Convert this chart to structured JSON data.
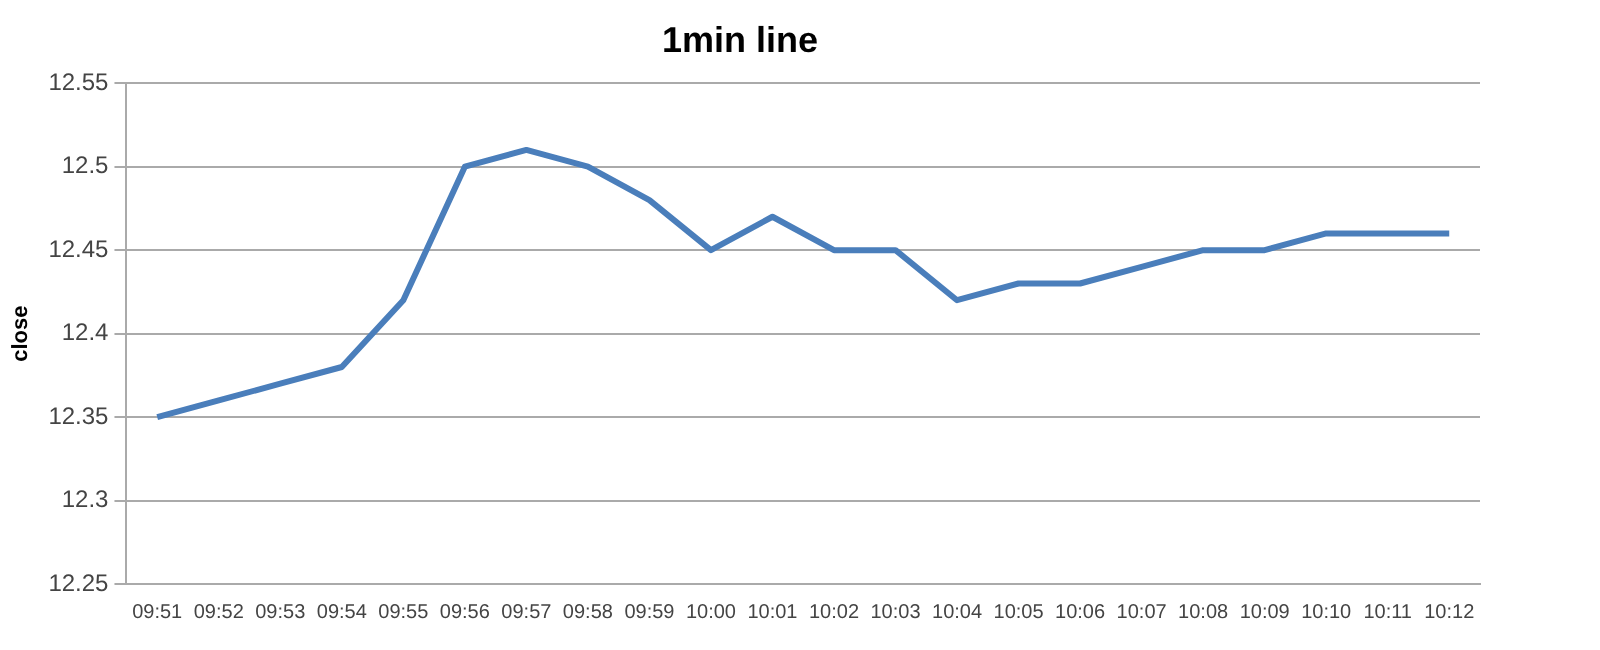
{
  "chart_data": {
    "type": "line",
    "title": "1min line",
    "ylabel": "close",
    "categories": [
      "09:51",
      "09:52",
      "09:53",
      "09:54",
      "09:55",
      "09:56",
      "09:57",
      "09:58",
      "09:59",
      "10:00",
      "10:01",
      "10:02",
      "10:03",
      "10:04",
      "10:05",
      "10:06",
      "10:07",
      "10:08",
      "10:09",
      "10:10",
      "10:11",
      "10:12"
    ],
    "series": [
      {
        "color": "#4a7ebb",
        "values": [
          12.35,
          12.36,
          12.37,
          12.38,
          12.42,
          12.5,
          12.51,
          12.5,
          12.48,
          12.45,
          12.47,
          12.45,
          12.45,
          12.42,
          12.43,
          12.43,
          12.44,
          12.45,
          12.45,
          12.46,
          12.46,
          12.46
        ]
      }
    ],
    "ylim": [
      12.25,
      12.55
    ],
    "yticks": [
      12.25,
      12.3,
      12.35,
      12.4,
      12.45,
      12.5,
      12.55
    ],
    "grid": "y",
    "legend": false,
    "marker": "none",
    "line_style": "solid"
  }
}
